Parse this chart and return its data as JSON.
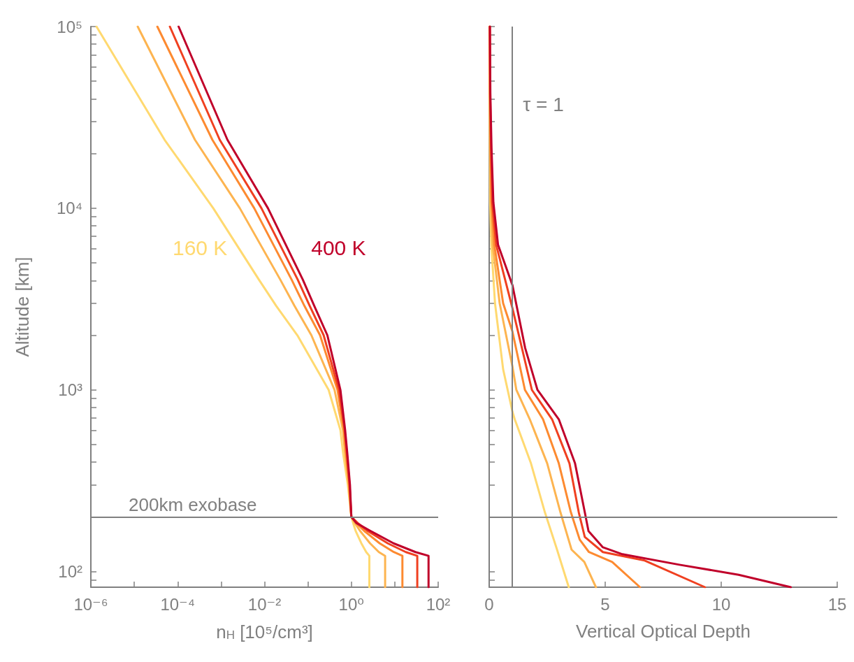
{
  "chart_data": [
    {
      "type": "line",
      "xlabel": "n$_{H}$ [10⁵/cm³]",
      "ylabel": "Altitude [km]",
      "log": "xy",
      "marker": "none",
      "line_style": "solid",
      "grid": false,
      "xlim": [
        1e-06,
        100
      ],
      "xticks": [
        {
          "value": 1e-06,
          "label": "10⁻⁶"
        },
        {
          "value": 1e-05,
          "label": null
        },
        {
          "value": 0.0001,
          "label": "10⁻⁴"
        },
        {
          "value": 0.001,
          "label": null
        },
        {
          "value": 0.01,
          "label": "10⁻²"
        },
        {
          "value": 0.1,
          "label": null
        },
        {
          "value": 1,
          "label": "10⁰"
        },
        {
          "value": 10,
          "label": null
        },
        {
          "value": 100,
          "label": "10²"
        }
      ],
      "ylim": [
        82,
        100000
      ],
      "yticks": [
        {
          "value": 90,
          "label": null
        },
        {
          "value": 100,
          "label": "10²"
        },
        {
          "value": 200,
          "label": null
        },
        {
          "value": 300,
          "label": null
        },
        {
          "value": 400,
          "label": null
        },
        {
          "value": 500,
          "label": null
        },
        {
          "value": 600,
          "label": null
        },
        {
          "value": 700,
          "label": null
        },
        {
          "value": 800,
          "label": null
        },
        {
          "value": 900,
          "label": null
        },
        {
          "value": 1000,
          "label": "10³"
        },
        {
          "value": 2000,
          "label": null
        },
        {
          "value": 3000,
          "label": null
        },
        {
          "value": 4000,
          "label": null
        },
        {
          "value": 5000,
          "label": null
        },
        {
          "value": 6000,
          "label": null
        },
        {
          "value": 7000,
          "label": null
        },
        {
          "value": 8000,
          "label": null
        },
        {
          "value": 9000,
          "label": null
        },
        {
          "value": 10000,
          "label": "10⁴"
        },
        {
          "value": 20000,
          "label": null
        },
        {
          "value": 30000,
          "label": null
        },
        {
          "value": 40000,
          "label": null
        },
        {
          "value": 50000,
          "label": null
        },
        {
          "value": 60000,
          "label": null
        },
        {
          "value": 70000,
          "label": null
        },
        {
          "value": 80000,
          "label": null
        },
        {
          "value": 90000,
          "label": null
        },
        {
          "value": 100000,
          "label": "10⁵"
        }
      ],
      "ref_lines": [
        {
          "axis": "y",
          "value": 200,
          "label": "200km exobase",
          "color": "#808080"
        }
      ],
      "series": [
        {
          "name": "160 K",
          "color": "#ffd970",
          "x": [
            1.35e-06,
            5e-05,
            0.00066,
            0.0074,
            0.0186,
            0.057,
            0.3,
            0.56,
            0.65,
            0.83,
            1,
            1.1,
            1.26,
            1.7,
            2.2,
            2.6,
            2.6
          ],
          "values": [
            100000,
            23800,
            10000,
            4050,
            2900,
            2000,
            1000,
            600,
            443,
            300,
            200,
            185,
            167,
            143,
            128,
            122,
            82
          ]
        },
        {
          "color": "#fdb450",
          "x": [
            1.2e-05,
            0.00025,
            0.0027,
            0.023,
            0.049,
            0.12,
            0.41,
            0.64,
            0.72,
            0.87,
            1,
            1.2,
            1.6,
            2.7,
            4.3,
            6.0,
            6.0
          ],
          "values": [
            100000,
            23800,
            10000,
            4050,
            2900,
            2000,
            1000,
            600,
            443,
            300,
            200,
            185,
            167,
            143,
            128,
            122,
            82
          ]
        },
        {
          "color": "#fd8a30",
          "x": [
            3.4e-05,
            0.00063,
            0.0058,
            0.042,
            0.083,
            0.19,
            0.48,
            0.68,
            0.76,
            0.89,
            1,
            1.3,
            2.0,
            4.5,
            9.5,
            15,
            15
          ],
          "values": [
            100000,
            23800,
            10000,
            4050,
            2900,
            2000,
            1000,
            600,
            443,
            300,
            200,
            185,
            167,
            143,
            128,
            122,
            82
          ]
        },
        {
          "color": "#f04020",
          "x": [
            6.6e-05,
            0.00093,
            0.0085,
            0.058,
            0.11,
            0.23,
            0.52,
            0.7,
            0.79,
            0.91,
            1,
            1.4,
            2.4,
            6.9,
            18,
            33,
            33
          ],
          "values": [
            100000,
            23800,
            10000,
            4050,
            2900,
            2000,
            1000,
            600,
            443,
            300,
            200,
            185,
            167,
            143,
            128,
            122,
            82
          ]
        },
        {
          "name": "400 K",
          "color": "#c0002a",
          "x": [
            0.000105,
            0.0014,
            0.012,
            0.076,
            0.14,
            0.28,
            0.56,
            0.72,
            0.81,
            0.93,
            1,
            1.3,
            2.8,
            9.4,
            30,
            60,
            60
          ],
          "values": [
            100000,
            23800,
            10000,
            4050,
            2900,
            2000,
            1000,
            600,
            443,
            300,
            200,
            185,
            167,
            143,
            128,
            122,
            82
          ]
        }
      ]
    },
    {
      "type": "line",
      "xlabel": "Vertical Optical Depth",
      "log": "y",
      "marker": "none",
      "line_style": "solid",
      "grid": false,
      "tick_labels": "x",
      "xlim": [
        0,
        15
      ],
      "xticks": [
        0,
        5,
        10,
        15
      ],
      "ylim": [
        82,
        100000
      ],
      "yticks": [
        {
          "value": 90,
          "label": null
        },
        {
          "value": 100,
          "label": null
        },
        {
          "value": 200,
          "label": null
        },
        {
          "value": 300,
          "label": null
        },
        {
          "value": 400,
          "label": null
        },
        {
          "value": 500,
          "label": null
        },
        {
          "value": 600,
          "label": null
        },
        {
          "value": 700,
          "label": null
        },
        {
          "value": 800,
          "label": null
        },
        {
          "value": 900,
          "label": null
        },
        {
          "value": 1000,
          "label": null
        },
        {
          "value": 2000,
          "label": null
        },
        {
          "value": 3000,
          "label": null
        },
        {
          "value": 4000,
          "label": null
        },
        {
          "value": 5000,
          "label": null
        },
        {
          "value": 6000,
          "label": null
        },
        {
          "value": 7000,
          "label": null
        },
        {
          "value": 8000,
          "label": null
        },
        {
          "value": 9000,
          "label": null
        },
        {
          "value": 10000,
          "label": null
        },
        {
          "value": 20000,
          "label": null
        },
        {
          "value": 30000,
          "label": null
        },
        {
          "value": 40000,
          "label": null
        },
        {
          "value": 50000,
          "label": null
        },
        {
          "value": 60000,
          "label": null
        },
        {
          "value": 70000,
          "label": null
        },
        {
          "value": 80000,
          "label": null
        },
        {
          "value": 90000,
          "label": null
        },
        {
          "value": 100000,
          "label": null
        }
      ],
      "ref_lines": [
        {
          "axis": "y",
          "value": 200,
          "color": "#808080"
        },
        {
          "axis": "x",
          "value": 1,
          "label": "τ = 1",
          "color": "#808080"
        }
      ],
      "series": [
        {
          "color": "#ffd970",
          "x": [
            0.01,
            0.02,
            0.03,
            0.04,
            0.09,
            0.25,
            0.6,
            1,
            1.1,
            1.8,
            2.4,
            2.9,
            3.43
          ],
          "values": [
            100000,
            42900,
            21400,
            10800,
            6300,
            3000,
            1300,
            760,
            689,
            394,
            212,
            135,
            82
          ]
        },
        {
          "color": "#fdb450",
          "x": [
            0.02,
            0.03,
            0.04,
            0.07,
            0.15,
            0.45,
            1,
            1.17,
            1.75,
            2.5,
            3.07,
            3.55,
            4.1,
            4.6
          ],
          "values": [
            100000,
            42900,
            21400,
            10800,
            6300,
            3000,
            1350,
            1000,
            689,
            394,
            212,
            132,
            113,
            82
          ]
        },
        {
          "color": "#fd8a30",
          "x": [
            0.02,
            0.03,
            0.06,
            0.1,
            0.22,
            0.6,
            1,
            1.54,
            2.32,
            3.0,
            3.52,
            3.9,
            4.3,
            5.3,
            6.5
          ],
          "values": [
            100000,
            42900,
            21400,
            10800,
            6300,
            3000,
            2100,
            1000,
            689,
            394,
            212,
            150,
            128,
            113,
            82
          ]
        },
        {
          "color": "#f04020",
          "x": [
            0.03,
            0.04,
            0.08,
            0.13,
            0.3,
            1,
            1.84,
            2.71,
            3.46,
            3.86,
            4.12,
            4.9,
            6.7,
            9.3
          ],
          "values": [
            100000,
            42900,
            21400,
            10800,
            6300,
            2820,
            1000,
            689,
            394,
            212,
            155,
            128,
            115,
            82
          ]
        },
        {
          "color": "#c0002a",
          "x": [
            0.03,
            0.05,
            0.1,
            0.18,
            0.38,
            1,
            1.55,
            2.08,
            3.0,
            3.7,
            4.12,
            4.28,
            4.9,
            5.7,
            8.2,
            10.75,
            13.0
          ],
          "values": [
            100000,
            42900,
            21400,
            10800,
            6300,
            3780,
            1700,
            1000,
            689,
            394,
            212,
            167,
            136,
            125,
            109,
            96,
            82
          ]
        }
      ]
    }
  ]
}
